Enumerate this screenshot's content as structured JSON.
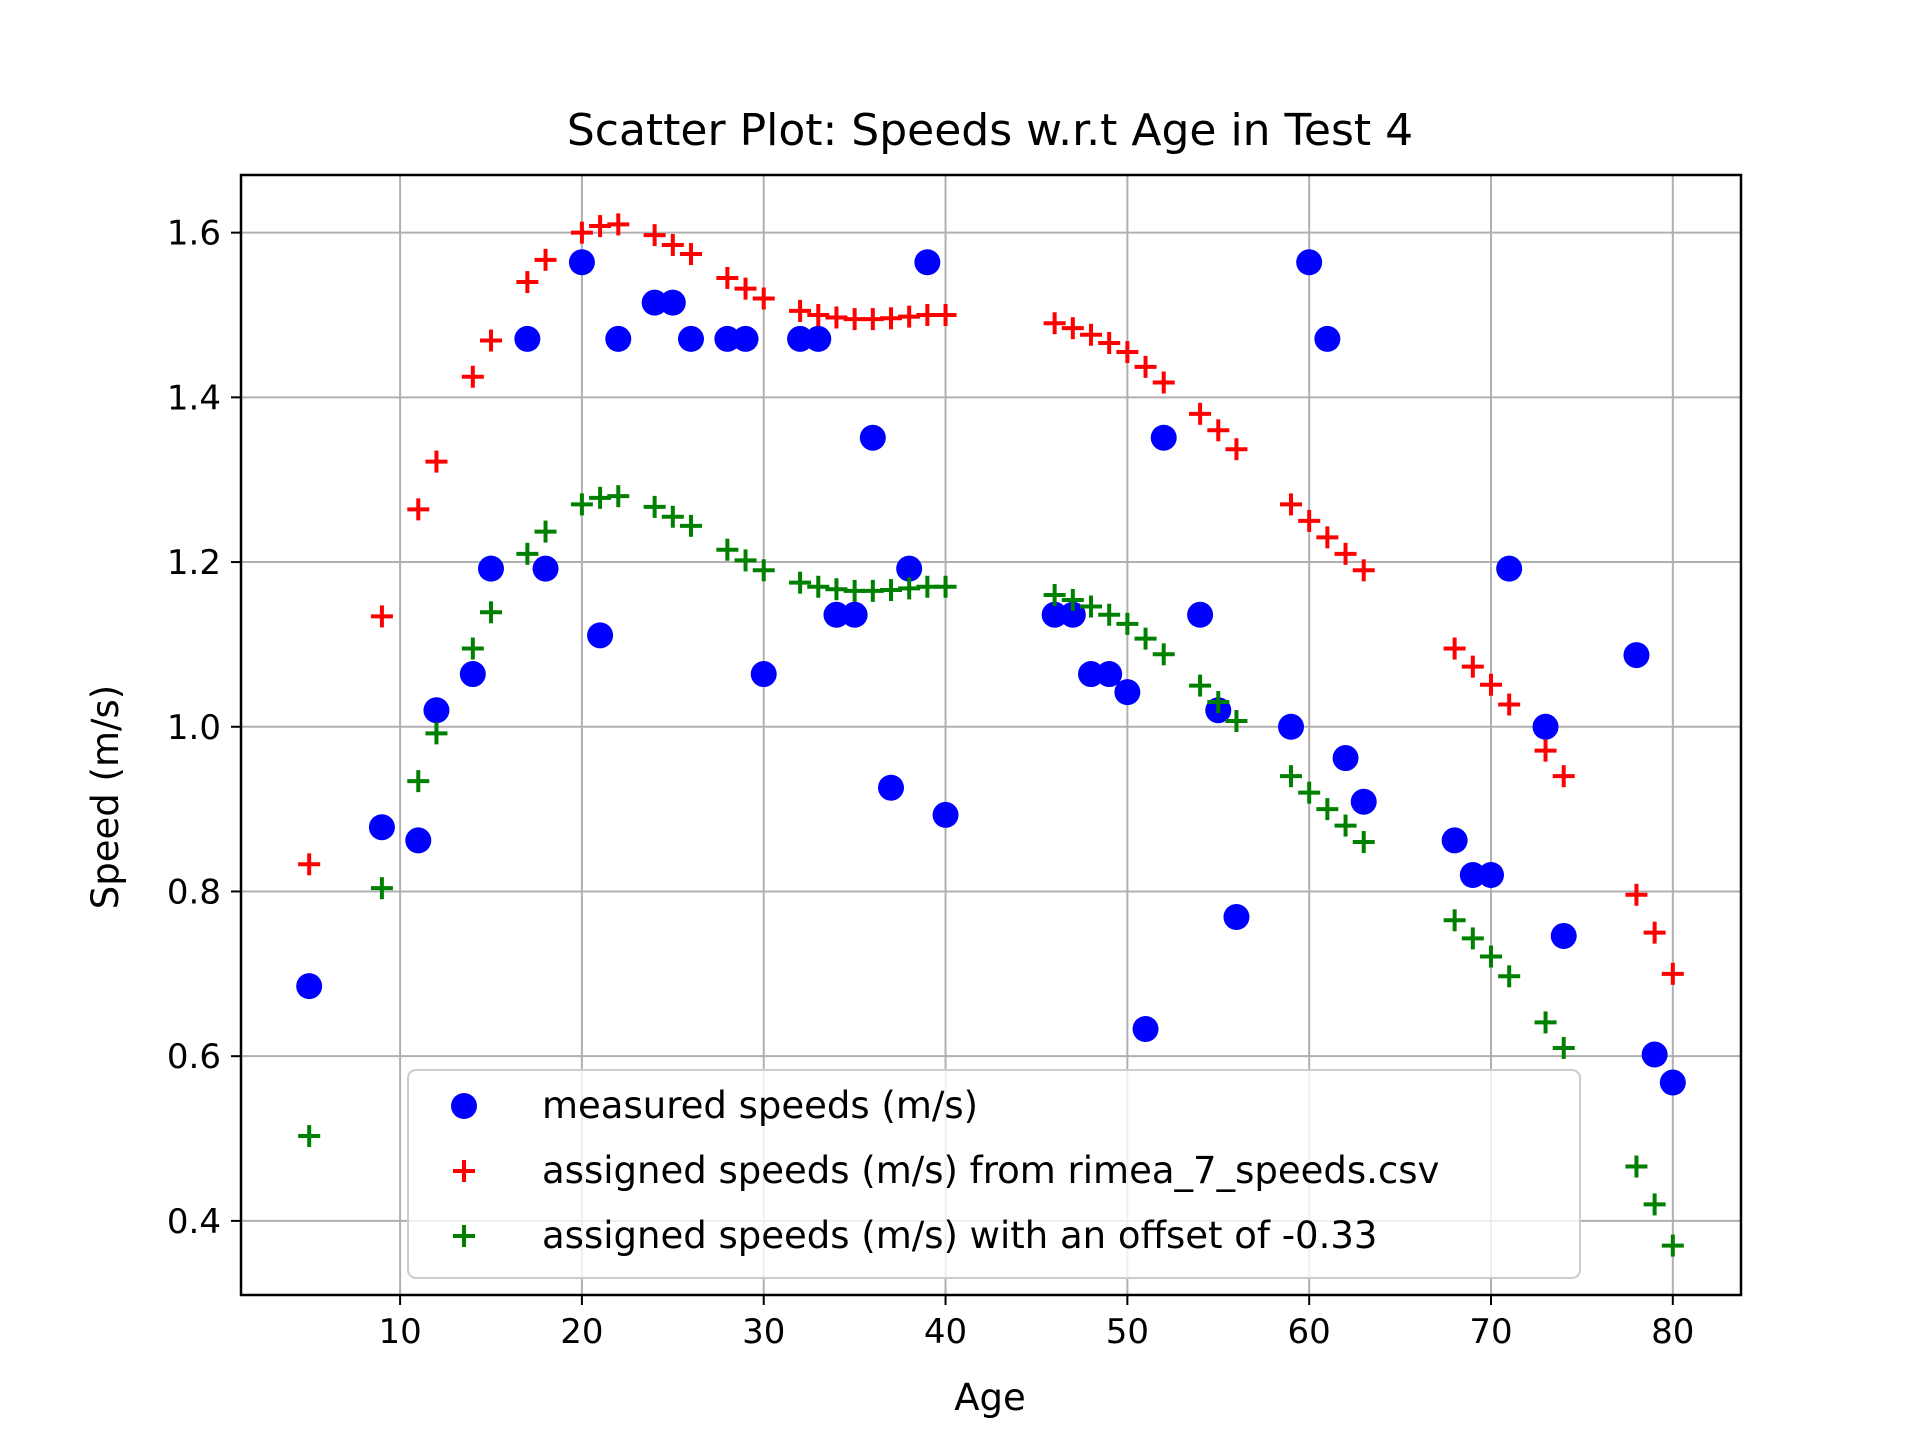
{
  "chart_data": {
    "type": "scatter",
    "title": "Scatter Plot: Speeds w.r.t Age in Test 4",
    "xlabel": "Age",
    "ylabel": "Speed (m/s)",
    "xlim": [
      1.25,
      83.75
    ],
    "ylim": [
      0.31,
      1.67
    ],
    "xticks": [
      "10",
      "20",
      "30",
      "40",
      "50",
      "60",
      "70",
      "80"
    ],
    "yticks": [
      "0.4",
      "0.6",
      "0.8",
      "1.0",
      "1.2",
      "1.4",
      "1.6"
    ],
    "grid": true,
    "legend_position": "lower-center",
    "series": [
      {
        "name": "measured speeds (m/s)",
        "marker": "circle",
        "color": "#0000ff",
        "x": [
          5,
          9,
          11,
          12,
          14,
          15,
          17,
          18,
          20,
          21,
          22,
          24,
          25,
          26,
          28,
          29,
          30,
          32,
          33,
          34,
          35,
          36,
          37,
          38,
          39,
          40,
          46,
          47,
          48,
          49,
          50,
          51,
          52,
          54,
          55,
          56,
          59,
          60,
          61,
          62,
          63,
          68,
          69,
          70,
          71,
          73,
          74,
          78,
          79,
          80
        ],
        "y": [
          0.685,
          0.878,
          0.862,
          1.02,
          1.064,
          1.192,
          1.471,
          1.192,
          1.564,
          1.111,
          1.471,
          1.515,
          1.515,
          1.471,
          1.471,
          1.471,
          1.064,
          1.471,
          1.471,
          1.136,
          1.136,
          1.351,
          0.926,
          1.192,
          1.564,
          0.893,
          1.136,
          1.136,
          1.064,
          1.064,
          1.042,
          0.633,
          1.351,
          1.136,
          1.02,
          0.769,
          1.0,
          1.564,
          1.471,
          0.962,
          0.909,
          0.862,
          0.82,
          0.82,
          1.192,
          1.0,
          0.746,
          1.087,
          0.602,
          0.568
        ]
      },
      {
        "name": "assigned speeds (m/s) from rimea_7_speeds.csv",
        "marker": "plus",
        "color": "#ff0000",
        "x": [
          5,
          9,
          11,
          12,
          14,
          15,
          17,
          18,
          20,
          21,
          22,
          24,
          25,
          26,
          28,
          29,
          30,
          32,
          33,
          34,
          35,
          36,
          37,
          38,
          39,
          40,
          46,
          47,
          48,
          49,
          50,
          51,
          52,
          54,
          55,
          56,
          59,
          60,
          61,
          62,
          63,
          68,
          69,
          70,
          71,
          73,
          74,
          78,
          79,
          80
        ],
        "y": [
          0.833,
          1.134,
          1.264,
          1.322,
          1.425,
          1.469,
          1.54,
          1.567,
          1.6,
          1.608,
          1.61,
          1.597,
          1.585,
          1.574,
          1.545,
          1.532,
          1.52,
          1.505,
          1.5,
          1.497,
          1.495,
          1.495,
          1.496,
          1.498,
          1.5,
          1.5,
          1.49,
          1.484,
          1.476,
          1.466,
          1.455,
          1.437,
          1.418,
          1.38,
          1.36,
          1.337,
          1.27,
          1.25,
          1.23,
          1.21,
          1.19,
          1.095,
          1.073,
          1.051,
          1.027,
          0.971,
          0.94,
          0.796,
          0.75,
          0.7
        ]
      },
      {
        "name": "assigned speeds (m/s) with an offset of -0.33",
        "marker": "plus",
        "color": "#008000",
        "x": [
          5,
          9,
          11,
          12,
          14,
          15,
          17,
          18,
          20,
          21,
          22,
          24,
          25,
          26,
          28,
          29,
          30,
          32,
          33,
          34,
          35,
          36,
          37,
          38,
          39,
          40,
          46,
          47,
          48,
          49,
          50,
          51,
          52,
          54,
          55,
          56,
          59,
          60,
          61,
          62,
          63,
          68,
          69,
          70,
          71,
          73,
          74,
          78,
          79,
          80
        ],
        "y": [
          0.503,
          0.804,
          0.934,
          0.992,
          1.095,
          1.139,
          1.21,
          1.237,
          1.27,
          1.278,
          1.28,
          1.267,
          1.255,
          1.244,
          1.215,
          1.202,
          1.19,
          1.175,
          1.17,
          1.167,
          1.165,
          1.165,
          1.166,
          1.168,
          1.17,
          1.17,
          1.16,
          1.154,
          1.146,
          1.136,
          1.125,
          1.107,
          1.088,
          1.05,
          1.03,
          1.007,
          0.94,
          0.92,
          0.9,
          0.88,
          0.86,
          0.765,
          0.743,
          0.721,
          0.697,
          0.641,
          0.61,
          0.466,
          0.42,
          0.37
        ]
      }
    ]
  }
}
